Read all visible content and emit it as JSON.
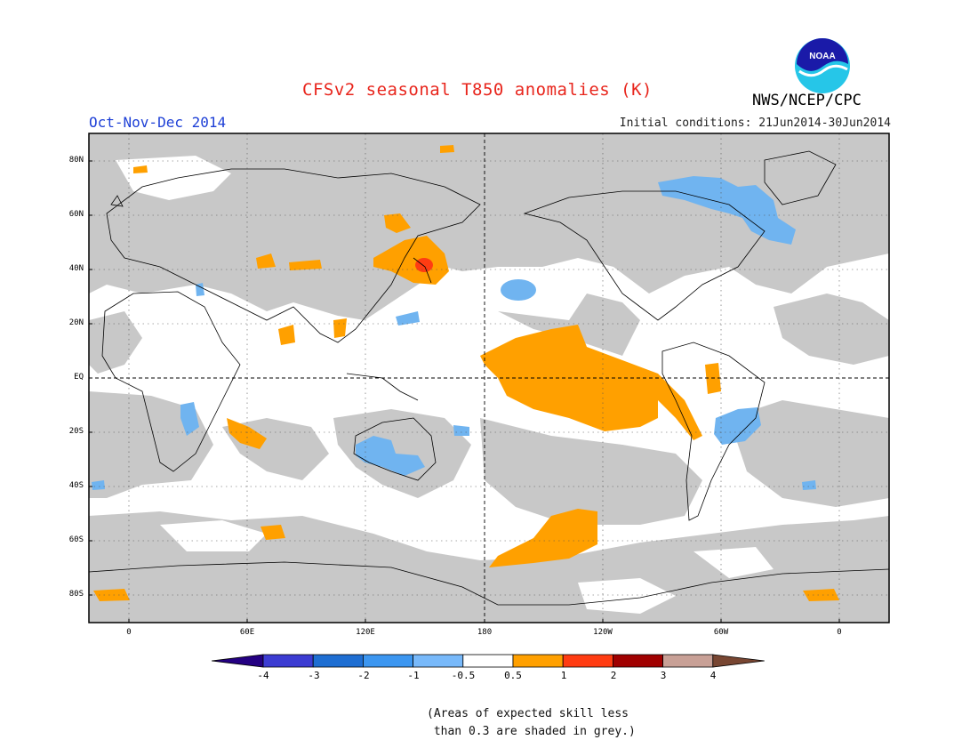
{
  "header": {
    "title": "CFSv2 seasonal T850 anomalies (K)",
    "season": "Oct-Nov-Dec 2014",
    "initial_conditions": "Initial conditions: 21Jun2014-30Jun2014",
    "organization": "NWS/NCEP/CPC",
    "logo_text": "NOAA"
  },
  "map": {
    "lat_labels": [
      "80N",
      "60N",
      "40N",
      "20N",
      "EQ",
      "20S",
      "40S",
      "60S",
      "80S"
    ],
    "lon_labels": [
      "0",
      "60E",
      "120E",
      "180",
      "120W",
      "60W",
      "0"
    ],
    "colors": {
      "skill_grey": "#c8c8c8",
      "orange": "#ffa000",
      "red": "#ff3c12",
      "light_blue": "#70b4f0"
    }
  },
  "colorbar": {
    "labels": [
      "-4",
      "-3",
      "-2",
      "-1",
      "-0.5",
      "0.5",
      "1",
      "2",
      "3",
      "4"
    ],
    "colors": [
      "#240082",
      "#3c3cd2",
      "#1e6ed2",
      "#3c96f0",
      "#78b9fa",
      "#ffffff",
      "#ffa000",
      "#ff3c12",
      "#a00000",
      "#c8a096",
      "#784632"
    ]
  },
  "note": {
    "line1": "(Areas of expected skill less",
    "line2": " than 0.3 are shaded in grey.)"
  }
}
